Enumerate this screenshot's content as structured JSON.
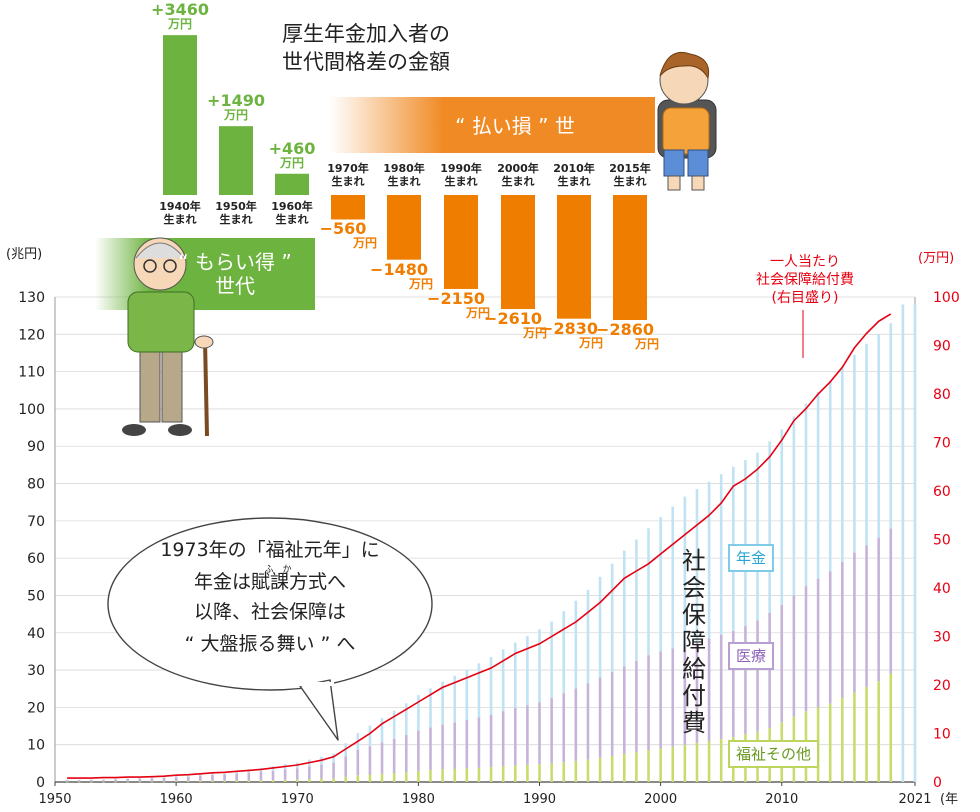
{
  "title_lines": [
    "厚生年金加入者の",
    "世代間格差の金額"
  ],
  "band_gain": "“ もらい得 ”\n世代",
  "band_loss": "“ 払い損 ” 世",
  "gap_bars": [
    {
      "label": "1940年\n生まれ",
      "value": 3460,
      "text": "+3460",
      "unit": "万円"
    },
    {
      "label": "1950年\n生まれ",
      "value": 1490,
      "text": "+1490",
      "unit": "万円"
    },
    {
      "label": "1960年\n生まれ",
      "value": 460,
      "text": "+460",
      "unit": "万円"
    },
    {
      "label": "1970年\n生まれ",
      "value": -560,
      "text": "−560",
      "unit": "万円"
    },
    {
      "label": "1980年\n生まれ",
      "value": -1480,
      "text": "−1480",
      "unit": "万円"
    },
    {
      "label": "1990年\n生まれ",
      "value": -2150,
      "text": "−2150",
      "unit": "万円"
    },
    {
      "label": "2000年\n生まれ",
      "value": -2610,
      "text": "−2610",
      "unit": "万円"
    },
    {
      "label": "2010年\n生まれ",
      "value": -2830,
      "text": "−2830",
      "unit": "万円"
    },
    {
      "label": "2015年\n生まれ",
      "value": -2860,
      "text": "−2860",
      "unit": "万円"
    }
  ],
  "bubble_lines": [
    "1973年の「福祉元年」に",
    "年金は賦課方式へ",
    "以降、社会保障は",
    "“ 大盤振る舞い ” へ"
  ],
  "bubble_ruby": "ふ　か",
  "vertical_label": "社会保障給付費",
  "red_label_lines": [
    "一人当たり",
    "社会保障給付費",
    "(右目盛り)"
  ],
  "chart_data": {
    "type": "area",
    "x_start": 1951,
    "x_end": 2019,
    "xlim": [
      1950,
      2021
    ],
    "x_ticks": [
      1950,
      1960,
      1970,
      1980,
      1990,
      2000,
      2010,
      2021
    ],
    "x_unit": "(年",
    "ylabel": "(兆円)",
    "ylim": [
      0,
      130
    ],
    "y_ticks": [
      0,
      10,
      20,
      30,
      40,
      50,
      60,
      70,
      80,
      90,
      100,
      110,
      120,
      130
    ],
    "y2label": "(万円)",
    "y2lim": [
      0,
      100
    ],
    "y2_ticks": [
      0,
      10,
      20,
      30,
      40,
      50,
      60,
      70,
      80,
      90,
      100
    ],
    "grid": true,
    "series": [
      {
        "name": "福祉その他",
        "color": "#c8dc6e",
        "values": [
          0.1,
          0.1,
          0.1,
          0.1,
          0.1,
          0.1,
          0.1,
          0.1,
          0.1,
          0.2,
          0.2,
          0.3,
          0.3,
          0.3,
          0.4,
          0.4,
          0.5,
          0.5,
          0.6,
          0.7,
          0.8,
          0.9,
          1.0,
          1.4,
          1.8,
          2.0,
          2.2,
          2.4,
          2.6,
          3.0,
          3.2,
          3.4,
          3.5,
          3.6,
          3.8,
          4.0,
          4.2,
          4.4,
          4.6,
          4.8,
          5.0,
          5.3,
          5.6,
          6.0,
          6.5,
          7.0,
          7.5,
          8.0,
          8.5,
          9.0,
          9.5,
          10.0,
          10.5,
          11.0,
          11.5,
          12.0,
          12.8,
          13.5,
          14.5,
          16.0,
          17.5,
          19.0,
          20.0,
          21.0,
          22.5,
          24.0,
          25.5,
          27.0,
          29.0
        ]
      },
      {
        "name": "医療",
        "color": "#c6b3da",
        "values": [
          0.4,
          0.4,
          0.5,
          0.5,
          0.6,
          0.7,
          0.8,
          0.9,
          1.0,
          1.1,
          1.2,
          1.4,
          1.6,
          1.7,
          1.9,
          2.1,
          2.3,
          2.5,
          2.8,
          3.0,
          3.4,
          3.8,
          4.2,
          5.5,
          6.8,
          7.6,
          8.4,
          9.2,
          10.0,
          10.8,
          11.4,
          12.0,
          12.5,
          13.0,
          13.5,
          14.0,
          14.8,
          15.5,
          16.0,
          16.6,
          17.5,
          18.5,
          19.5,
          20.5,
          21.5,
          22.5,
          23.5,
          24.5,
          25.5,
          26.0,
          26.3,
          26.5,
          27.0,
          27.5,
          28.0,
          28.5,
          29.0,
          29.8,
          30.8,
          31.5,
          32.5,
          33.5,
          34.5,
          35.5,
          36.5,
          37.5,
          38.0,
          38.5,
          39.0
        ]
      },
      {
        "name": "年金",
        "color": "#bfe3f3",
        "values": [
          0.1,
          0.1,
          0.1,
          0.1,
          0.2,
          0.2,
          0.2,
          0.3,
          0.3,
          0.4,
          0.4,
          0.5,
          0.6,
          0.7,
          0.8,
          0.9,
          1.0,
          1.2,
          1.4,
          1.5,
          1.8,
          2.1,
          2.4,
          3.5,
          4.5,
          5.5,
          6.5,
          7.5,
          8.5,
          9.5,
          10.5,
          11.5,
          12.5,
          13.5,
          14.5,
          15.5,
          16.5,
          17.5,
          18.5,
          19.5,
          20.5,
          22.0,
          23.5,
          25.0,
          27.0,
          29.0,
          31.0,
          32.5,
          34.0,
          36.0,
          38.0,
          40.0,
          41.0,
          42.0,
          43.0,
          44.0,
          44.5,
          45.0,
          46.0,
          47.0,
          48.0,
          49.0,
          50.0,
          51.0,
          52.0,
          53.0,
          54.0,
          54.5,
          55.0
        ]
      },
      {
        "name": "一人当たり社会保障給付費",
        "axis": "right",
        "color": "#e60012",
        "values": [
          0.8,
          0.8,
          0.8,
          0.9,
          0.9,
          1.0,
          1.0,
          1.1,
          1.2,
          1.4,
          1.5,
          1.7,
          1.9,
          2.0,
          2.2,
          2.4,
          2.6,
          2.9,
          3.2,
          3.5,
          4.0,
          4.5,
          5.2,
          6.8,
          8.4,
          10.0,
          12.0,
          13.5,
          15.0,
          16.5,
          18.0,
          19.5,
          20.5,
          21.5,
          22.5,
          23.5,
          25.0,
          26.5,
          27.5,
          28.5,
          30.0,
          31.5,
          33.0,
          35.0,
          37.0,
          39.5,
          42.0,
          43.5,
          45.0,
          47.0,
          49.0,
          51.0,
          53.0,
          55.0,
          57.5,
          61.0,
          62.5,
          64.5,
          67.0,
          70.5,
          74.5,
          77.0,
          80.0,
          82.5,
          85.5,
          89.5,
          92.5,
          95.0,
          96.5
        ]
      }
    ]
  }
}
